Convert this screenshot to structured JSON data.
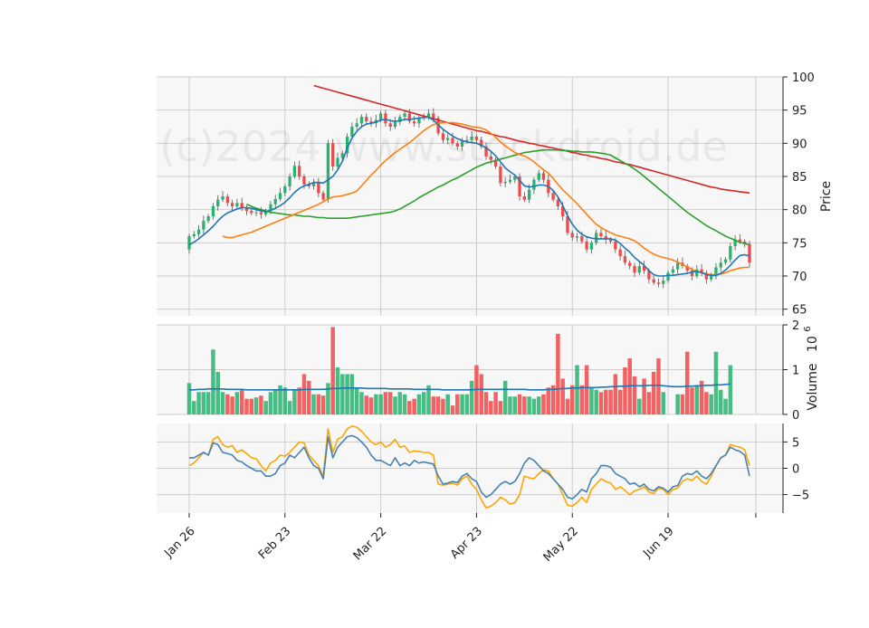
{
  "watermark": "(c)2024 www.stockdroid.de",
  "colors": {
    "up": "#26b36e",
    "down": "#f24848",
    "panel_bg": "#f7f7f7",
    "grid": "#cccccc",
    "ma_fast": "#1f77b4",
    "ma_mid": "#ff7f0e",
    "ma_slow": "#2ca02c",
    "ma_long": "#d62728",
    "volume_avg": "#1f77b4",
    "osc_orange": "#ffa500",
    "osc_blue": "#4682b4"
  },
  "chart_data": {
    "type": "candlestick",
    "x_tick_labels": [
      "Jan 26",
      "Feb 23",
      "Mar 22",
      "Apr 23",
      "May 22",
      "Jun 19"
    ],
    "x_tick_index": [
      0,
      20,
      40,
      60,
      80,
      100
    ],
    "price_panel": {
      "ylabel": "Price",
      "ylim": [
        64,
        100
      ],
      "yticks": [
        65,
        70,
        75,
        80,
        85,
        90,
        95,
        100
      ],
      "close": [
        76.0,
        76.3,
        77.0,
        78.3,
        79.0,
        80.5,
        81.5,
        82.0,
        81.0,
        80.5,
        81.0,
        80.3,
        79.8,
        79.5,
        79.6,
        79.3,
        79.8,
        80.8,
        81.6,
        82.5,
        83.5,
        85.0,
        86.6,
        85.0,
        83.8,
        83.5,
        84.0,
        82.5,
        81.5,
        90.0,
        86.5,
        87.8,
        88.5,
        91.0,
        92.5,
        93.0,
        94.0,
        93.3,
        93.0,
        93.5,
        94.5,
        93.0,
        92.5,
        93.2,
        94.0,
        94.5,
        93.3,
        93.0,
        93.8,
        94.0,
        94.5,
        93.8,
        91.5,
        90.5,
        90.8,
        90.0,
        89.5,
        90.3,
        90.5,
        91.0,
        90.5,
        89.5,
        88.0,
        87.5,
        86.5,
        84.0,
        84.2,
        84.5,
        85.0,
        82.0,
        81.5,
        83.0,
        84.5,
        85.5,
        84.5,
        82.5,
        81.5,
        80.5,
        79.0,
        76.5,
        75.8,
        76.0,
        75.2,
        74.0,
        75.0,
        76.5,
        76.0,
        75.5,
        75.2,
        74.0,
        73.0,
        72.0,
        71.5,
        70.5,
        71.5,
        70.8,
        69.5,
        69.0,
        68.8,
        69.3,
        70.5,
        71.0,
        72.0,
        71.5,
        70.8,
        70.0,
        71.0,
        70.5,
        69.5,
        70.0,
        71.3,
        72.0,
        72.5,
        74.5,
        75.5,
        75.2,
        74.8,
        72.0
      ],
      "ma_fast_color": "#1f77b4",
      "ma_mid_color": "#ff7f0e",
      "ma_slow_color": "#2ca02c",
      "ma_long_color": "#d62728",
      "ma_fast": [
        74.7,
        75.1,
        75.6,
        76.2,
        76.8,
        77.5,
        78.3,
        79.0,
        79.5,
        79.8,
        80.1,
        80.3,
        80.3,
        80.2,
        80.0,
        79.8,
        79.7,
        79.9,
        80.2,
        80.6,
        81.1,
        81.8,
        82.6,
        83.2,
        83.6,
        83.8,
        84.1,
        84.1,
        84.0,
        84.5,
        85.0,
        86.0,
        87.3,
        89.3,
        90.8,
        91.8,
        92.5,
        92.9,
        93.0,
        93.2,
        93.5,
        93.6,
        93.4,
        93.3,
        93.4,
        93.6,
        93.6,
        93.7,
        93.8,
        93.9,
        93.9,
        93.5,
        92.8,
        92.1,
        91.6,
        91.1,
        90.7,
        90.4,
        90.2,
        90.1,
        90.0,
        89.7,
        89.3,
        88.8,
        88.1,
        87.2,
        86.3,
        85.7,
        85.2,
        84.4,
        83.6,
        83.4,
        83.5,
        83.7,
        83.7,
        83.5,
        82.9,
        81.9,
        80.6,
        79.1,
        77.8,
        76.9,
        76.3,
        75.9,
        75.7,
        75.6,
        75.6,
        75.6,
        75.6,
        75.4,
        74.9,
        74.2,
        73.6,
        72.8,
        72.2,
        71.6,
        70.8,
        70.2,
        70.0,
        70.0,
        70.1,
        70.1,
        70.2,
        70.3,
        70.4,
        70.6,
        70.7,
        70.5,
        70.2,
        70.1,
        70.1,
        70.4,
        70.9,
        71.6,
        72.4,
        73.1,
        73.2,
        73.0
      ],
      "ma_mid": [
        76.0,
        75.8,
        75.8,
        76.0,
        76.2,
        76.4,
        76.6,
        76.9,
        77.2,
        77.5,
        77.8,
        78.1,
        78.4,
        78.7,
        79.0,
        79.3,
        79.6,
        79.9,
        80.2,
        80.5,
        80.8,
        81.2,
        81.6,
        81.9,
        82.0,
        82.1,
        82.3,
        82.5,
        82.8,
        83.6,
        84.4,
        85.2,
        85.9,
        86.7,
        87.4,
        88.0,
        88.6,
        89.1,
        89.6,
        90.1,
        90.7,
        91.3,
        91.9,
        92.4,
        92.8,
        93.0,
        93.1,
        93.1,
        93.1,
        93.0,
        92.9,
        92.7,
        92.5,
        92.4,
        92.3,
        92.0,
        91.5,
        90.9,
        90.2,
        89.6,
        89.1,
        88.6,
        88.3,
        88.1,
        87.7,
        87.2,
        86.6,
        86.0,
        85.5,
        84.7,
        83.8,
        83.0,
        82.3,
        81.6,
        80.9,
        80.1,
        79.3,
        78.5,
        77.8,
        77.3,
        76.9,
        76.5,
        76.2,
        76.0,
        75.8,
        75.6,
        75.3,
        74.8,
        74.2,
        73.7,
        73.3,
        73.0,
        72.8,
        72.6,
        72.4,
        72.1,
        71.7,
        71.4,
        71.0,
        70.7,
        70.5,
        70.3,
        70.2,
        70.2,
        70.3,
        70.5,
        70.8,
        71.0,
        71.2,
        71.3,
        71.3
      ],
      "ma_slow": [
        80.8,
        80.5,
        80.2,
        80.0,
        79.8,
        79.6,
        79.5,
        79.4,
        79.3,
        79.2,
        79.2,
        79.1,
        79.0,
        79.0,
        78.9,
        78.8,
        78.8,
        78.7,
        78.7,
        78.7,
        78.7,
        78.7,
        78.8,
        78.9,
        79.0,
        79.1,
        79.2,
        79.3,
        79.4,
        79.5,
        79.6,
        79.8,
        80.1,
        80.5,
        80.9,
        81.3,
        81.8,
        82.2,
        82.6,
        83.0,
        83.4,
        83.7,
        84.1,
        84.5,
        84.8,
        85.2,
        85.6,
        86.0,
        86.4,
        86.7,
        87.0,
        87.2,
        87.4,
        87.6,
        87.8,
        88.0,
        88.2,
        88.4,
        88.6,
        88.7,
        88.8,
        88.9,
        89.0,
        89.0,
        89.0,
        89.0,
        88.9,
        88.9,
        88.8,
        88.8,
        88.7,
        88.7,
        88.7,
        88.6,
        88.5,
        88.4,
        88.2,
        87.8,
        87.4,
        87.0,
        86.6,
        86.1,
        85.6,
        85.0,
        84.4,
        83.8,
        83.2,
        82.6,
        82.0,
        81.4,
        80.8,
        80.2,
        79.6,
        79.1,
        78.6,
        78.1,
        77.6,
        77.2,
        76.8,
        76.4,
        76.0,
        75.7,
        75.4,
        75.1,
        74.9,
        74.7
      ],
      "ma_long": [
        98.7,
        98.5,
        98.3,
        98.1,
        97.9,
        97.7,
        97.5,
        97.3,
        97.1,
        96.9,
        96.7,
        96.5,
        96.3,
        96.1,
        95.9,
        95.7,
        95.5,
        95.3,
        95.1,
        94.9,
        94.7,
        94.5,
        94.3,
        94.1,
        93.9,
        93.7,
        93.5,
        93.3,
        93.1,
        92.9,
        92.7,
        92.5,
        92.3,
        92.1,
        91.9,
        91.8,
        91.6,
        91.4,
        91.2,
        91.0,
        90.9,
        90.7,
        90.5,
        90.3,
        90.2,
        90.0,
        89.9,
        89.7,
        89.6,
        89.4,
        89.3,
        89.1,
        89.0,
        88.8,
        88.6,
        88.5,
        88.3,
        88.2,
        88.0,
        87.9,
        87.7,
        87.6,
        87.4,
        87.2,
        87.1,
        86.9,
        86.8,
        86.6,
        86.4,
        86.2,
        86.0,
        85.8,
        85.6,
        85.4,
        85.2,
        85.0,
        84.8,
        84.6,
        84.4,
        84.2,
        84.0,
        83.8,
        83.6,
        83.4,
        83.3,
        83.1,
        83.0,
        82.9,
        82.8,
        82.7,
        82.6,
        82.5
      ]
    },
    "volume_panel": {
      "ylabel": "Volume  10^6",
      "ylabel_main": "Volume",
      "ylabel_exp": "6",
      "ylabel_base": "10",
      "ylim": [
        0,
        2
      ],
      "yticks": [
        0,
        1,
        2
      ],
      "volume": [
        0.7,
        0.3,
        0.5,
        0.5,
        0.5,
        1.45,
        0.95,
        0.5,
        0.45,
        0.4,
        0.5,
        0.55,
        0.35,
        0.35,
        0.38,
        0.42,
        0.3,
        0.5,
        0.55,
        0.65,
        0.6,
        0.3,
        0.55,
        0.6,
        0.9,
        0.75,
        0.45,
        0.45,
        0.42,
        0.7,
        1.95,
        1.05,
        0.9,
        0.9,
        0.9,
        0.6,
        0.5,
        0.42,
        0.38,
        0.45,
        0.45,
        0.5,
        0.5,
        0.4,
        0.5,
        0.45,
        0.3,
        0.35,
        0.45,
        0.5,
        0.65,
        0.4,
        0.4,
        0.35,
        0.45,
        0.2,
        0.45,
        0.45,
        0.45,
        0.75,
        1.1,
        0.9,
        0.5,
        0.3,
        0.5,
        0.3,
        0.75,
        0.4,
        0.4,
        0.45,
        0.4,
        0.4,
        0.35,
        0.4,
        0.45,
        0.6,
        0.65,
        1.8,
        0.8,
        0.35,
        0.65,
        1.1,
        0.65,
        1.1,
        0.6,
        0.55,
        0.5,
        0.55,
        0.55,
        0.9,
        0.55,
        1.05,
        1.25,
        0.85,
        0.35,
        0.8,
        0.5,
        0.95,
        1.25,
        0.5,
        0.0,
        0.0,
        0.45,
        0.45,
        1.4,
        0.6,
        0.65,
        0.75,
        0.5,
        0.45,
        1.4,
        0.55,
        0.35,
        1.1
      ],
      "volume_avg": [
        0.55,
        0.55,
        0.56,
        0.56,
        0.57,
        0.57,
        0.57,
        0.57,
        0.56,
        0.56,
        0.56,
        0.56,
        0.55,
        0.55,
        0.55,
        0.55,
        0.55,
        0.55,
        0.55,
        0.55,
        0.55,
        0.55,
        0.55,
        0.55,
        0.56,
        0.56,
        0.56,
        0.56,
        0.56,
        0.57,
        0.58,
        0.58,
        0.59,
        0.59,
        0.59,
        0.59,
        0.59,
        0.58,
        0.58,
        0.58,
        0.58,
        0.58,
        0.57,
        0.57,
        0.57,
        0.57,
        0.57,
        0.56,
        0.56,
        0.56,
        0.56,
        0.56,
        0.56,
        0.55,
        0.55,
        0.55,
        0.55,
        0.55,
        0.55,
        0.55,
        0.56,
        0.56,
        0.56,
        0.56,
        0.56,
        0.56,
        0.56,
        0.56,
        0.56,
        0.56,
        0.56,
        0.55,
        0.55,
        0.55,
        0.55,
        0.56,
        0.56,
        0.57,
        0.58,
        0.58,
        0.59,
        0.59,
        0.6,
        0.6,
        0.6,
        0.6,
        0.61,
        0.61,
        0.62,
        0.62,
        0.63,
        0.63,
        0.64,
        0.64,
        0.64,
        0.64,
        0.65,
        0.65,
        0.65,
        0.64,
        0.63,
        0.62,
        0.62,
        0.62,
        0.63,
        0.63,
        0.64,
        0.64,
        0.65,
        0.65,
        0.66,
        0.66,
        0.67,
        0.68
      ]
    },
    "oscillator_panel": {
      "ylim": [
        -8.5,
        8.5
      ],
      "yticks": [
        -5,
        0,
        5
      ],
      "orange": [
        0.5,
        1.0,
        2.0,
        3.0,
        2.5,
        5.5,
        6.0,
        4.5,
        4.0,
        4.3,
        3.0,
        3.5,
        2.8,
        2.0,
        1.8,
        0.5,
        -0.5,
        1.0,
        1.5,
        2.5,
        2.3,
        3.0,
        4.0,
        5.0,
        4.8,
        2.5,
        1.5,
        0.5,
        -1.5,
        7.5,
        3.0,
        5.5,
        6.0,
        7.5,
        8.0,
        7.8,
        7.0,
        6.0,
        5.0,
        4.5,
        5.0,
        4.0,
        4.5,
        5.5,
        4.0,
        4.2,
        3.0,
        3.3,
        3.2,
        3.0,
        3.0,
        2.5,
        -3.0,
        -3.2,
        -3.0,
        -2.8,
        -3.2,
        -2.0,
        -1.5,
        -3.0,
        -4.0,
        -6.0,
        -7.5,
        -7.2,
        -6.5,
        -5.5,
        -6.0,
        -6.8,
        -6.5,
        -5.0,
        -1.5,
        -1.8,
        -2.0,
        -1.0,
        -0.3,
        -0.5,
        -2.0,
        -3.0,
        -5.0,
        -7.0,
        -7.2,
        -6.5,
        -5.5,
        -6.5,
        -4.0,
        -3.0,
        -2.0,
        -2.5,
        -2.8,
        -4.0,
        -3.5,
        -4.2,
        -5.0,
        -4.3,
        -4.0,
        -3.5,
        -4.5,
        -4.8,
        -3.8,
        -4.0,
        -5.0,
        -4.0,
        -3.8,
        -2.5,
        -2.0,
        -2.3,
        -1.5,
        -2.5,
        -3.0,
        -1.5,
        0.5,
        2.0,
        2.5,
        4.5,
        4.2,
        4.0,
        3.5,
        0.5
      ],
      "blue": [
        2.0,
        2.0,
        2.5,
        3.0,
        2.5,
        4.8,
        4.5,
        3.0,
        2.8,
        2.5,
        1.5,
        1.2,
        0.5,
        0.0,
        -0.5,
        -0.5,
        -1.5,
        -1.5,
        -1.0,
        0.5,
        1.0,
        2.5,
        2.0,
        3.0,
        4.0,
        2.0,
        0.5,
        0.0,
        -2.0,
        6.0,
        2.0,
        4.0,
        5.0,
        6.0,
        6.2,
        5.8,
        5.0,
        4.0,
        2.5,
        1.5,
        1.5,
        1.0,
        0.5,
        2.0,
        0.5,
        1.0,
        0.5,
        1.5,
        1.0,
        1.2,
        1.0,
        0.8,
        -1.5,
        -3.0,
        -2.8,
        -2.5,
        -2.7,
        -1.5,
        -1.0,
        -2.0,
        -2.5,
        -4.5,
        -5.5,
        -5.0,
        -4.0,
        -3.0,
        -2.5,
        -3.0,
        -2.5,
        -1.0,
        1.0,
        2.0,
        1.5,
        0.5,
        -0.5,
        -1.0,
        -2.0,
        -3.0,
        -4.0,
        -5.5,
        -5.8,
        -5.0,
        -4.0,
        -4.5,
        -2.0,
        -1.0,
        0.5,
        0.5,
        0.2,
        -1.0,
        -1.5,
        -2.0,
        -3.0,
        -2.8,
        -3.5,
        -3.0,
        -4.0,
        -4.3,
        -3.5,
        -3.8,
        -4.5,
        -3.5,
        -3.3,
        -1.5,
        -1.0,
        -1.2,
        -0.5,
        -1.5,
        -2.0,
        -1.0,
        0.5,
        2.0,
        2.5,
        4.0,
        3.5,
        3.2,
        2.5,
        -1.5
      ]
    }
  }
}
